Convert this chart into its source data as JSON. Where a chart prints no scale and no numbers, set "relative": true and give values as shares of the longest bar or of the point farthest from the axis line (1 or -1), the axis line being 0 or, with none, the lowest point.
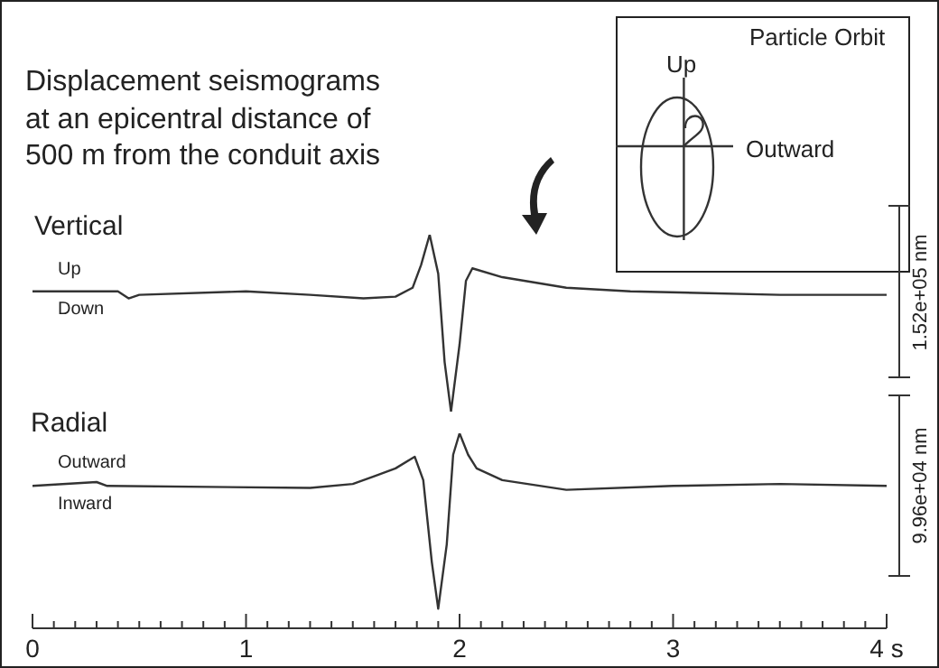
{
  "chart_data": [
    {
      "type": "line",
      "title": "Displacement seismograms at an epicentral distance of 500 m from the conduit axis",
      "subtitle": "Vertical",
      "relative": true,
      "marker": "none",
      "xlim": [
        0,
        4
      ],
      "x": [
        0,
        0.3,
        0.4,
        0.45,
        0.5,
        1.0,
        1.3,
        1.55,
        1.7,
        1.78,
        1.82,
        1.86,
        1.9,
        1.93,
        1.96,
        2.0,
        2.03,
        2.06,
        2.2,
        2.5,
        2.8,
        3.5,
        4.0
      ],
      "series": [
        {
          "color": "#333333",
          "values": [
            0.68,
            0.68,
            0.68,
            0.64,
            0.66,
            0.68,
            0.66,
            0.64,
            0.65,
            0.7,
            0.83,
            1,
            0.78,
            0.28,
            0,
            0.38,
            0.74,
            0.81,
            0.76,
            0.7,
            0.68,
            0.66,
            0.66
          ]
        }
      ],
      "annotations": [
        "Up",
        "Down",
        "1.52e+05 nm",
        "Particle Orbit",
        "Up",
        "Outward"
      ]
    },
    {
      "type": "line",
      "subtitle": "Radial",
      "relative": true,
      "marker": "none",
      "xlim": [
        0,
        4
      ],
      "xticks": [
        0,
        {
          "value": 0.1,
          "label": null
        },
        {
          "value": 0.2,
          "label": null
        },
        {
          "value": 0.3,
          "label": null
        },
        {
          "value": 0.4,
          "label": null
        },
        {
          "value": 0.5,
          "label": null
        },
        {
          "value": 0.6,
          "label": null
        },
        {
          "value": 0.7,
          "label": null
        },
        {
          "value": 0.8,
          "label": null
        },
        {
          "value": 0.9,
          "label": null
        },
        1,
        {
          "value": 1.1,
          "label": null
        },
        {
          "value": 1.2,
          "label": null
        },
        {
          "value": 1.3,
          "label": null
        },
        {
          "value": 1.4,
          "label": null
        },
        {
          "value": 1.5,
          "label": null
        },
        {
          "value": 1.6,
          "label": null
        },
        {
          "value": 1.7,
          "label": null
        },
        {
          "value": 1.8,
          "label": null
        },
        {
          "value": 1.9,
          "label": null
        },
        2,
        {
          "value": 2.1,
          "label": null
        },
        {
          "value": 2.2,
          "label": null
        },
        {
          "value": 2.3,
          "label": null
        },
        {
          "value": 2.4,
          "label": null
        },
        {
          "value": 2.5,
          "label": null
        },
        {
          "value": 2.6,
          "label": null
        },
        {
          "value": 2.7,
          "label": null
        },
        {
          "value": 2.8,
          "label": null
        },
        {
          "value": 2.9,
          "label": null
        },
        3,
        {
          "value": 3.1,
          "label": null
        },
        {
          "value": 3.2,
          "label": null
        },
        {
          "value": 3.3,
          "label": null
        },
        {
          "value": 3.4,
          "label": null
        },
        {
          "value": 3.5,
          "label": null
        },
        {
          "value": 3.6,
          "label": null
        },
        {
          "value": 3.7,
          "label": null
        },
        {
          "value": 3.8,
          "label": null
        },
        {
          "value": 3.9,
          "label": null
        },
        {
          "value": 4,
          "label": "4 s"
        }
      ],
      "x": [
        0,
        0.3,
        0.35,
        1.3,
        1.5,
        1.6,
        1.7,
        1.79,
        1.83,
        1.87,
        1.9,
        1.94,
        1.97,
        2.0,
        2.04,
        2.08,
        2.2,
        2.5,
        3.0,
        3.5,
        4.0
      ],
      "series": [
        {
          "color": "#333333",
          "values": [
            0.73,
            0.75,
            0.73,
            0.72,
            0.74,
            0.78,
            0.82,
            0.88,
            0.76,
            0.34,
            0.1,
            0.43,
            0.89,
            1,
            0.89,
            0.82,
            0.76,
            0.71,
            0.73,
            0.74,
            0.73
          ]
        }
      ],
      "annotations": [
        "Outward",
        "Inward",
        "9.96e+04 nm"
      ]
    }
  ]
}
